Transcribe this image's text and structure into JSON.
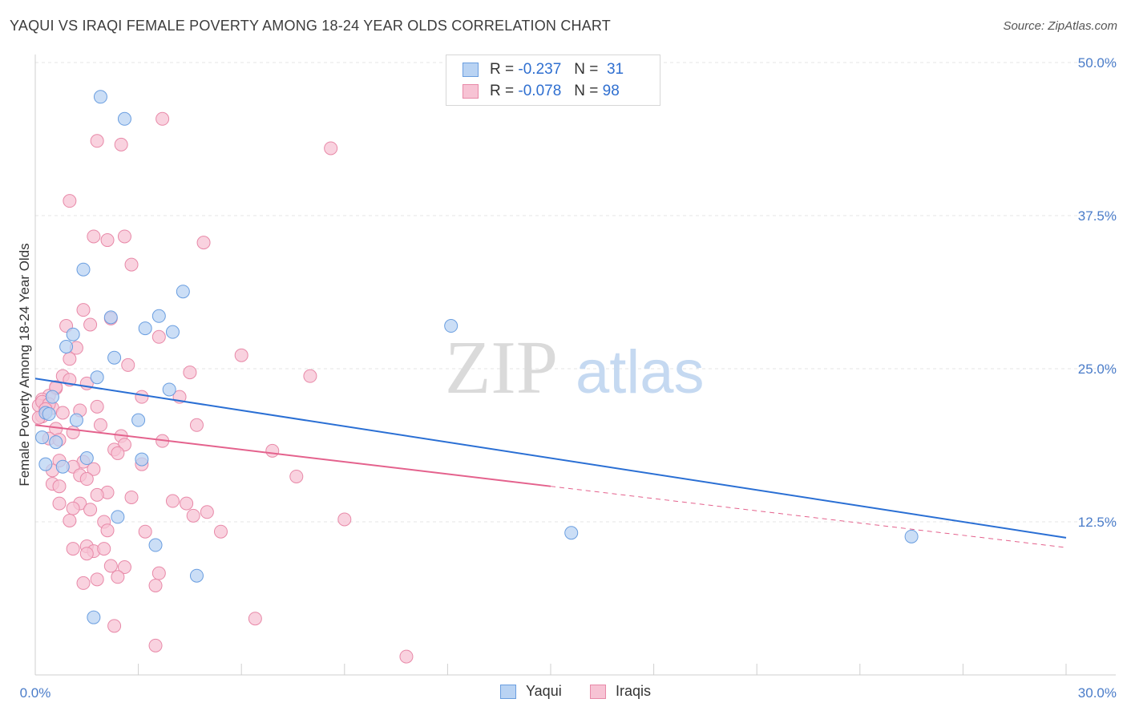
{
  "header": {
    "title": "YAQUI VS IRAQI FEMALE POVERTY AMONG 18-24 YEAR OLDS CORRELATION CHART",
    "source": "Source: ZipAtlas.com"
  },
  "legend": {
    "yaqui": {
      "r_label": "R =",
      "r_value": "-0.237",
      "n_label": "N =",
      "n_value": "31"
    },
    "iraqis": {
      "r_label": "R =",
      "r_value": "-0.078",
      "n_label": "N =",
      "n_value": "98"
    }
  },
  "bottom_legend": {
    "yaqui": "Yaqui",
    "iraqis": "Iraqis"
  },
  "watermark": {
    "zip": "ZIP",
    "atlas": "atlas"
  },
  "colors": {
    "yaqui_fill": "#b9d3f3",
    "yaqui_stroke": "#6a9ee0",
    "yaqui_line": "#2a6fd4",
    "iraqi_fill": "#f7c3d4",
    "iraqi_stroke": "#e889a8",
    "iraqi_line": "#e4628d",
    "tick_text": "#4a7cc9",
    "grid": "#e6e6e6"
  },
  "chart_data": {
    "type": "scatter",
    "title": "YAQUI VS IRAQI FEMALE POVERTY AMONG 18-24 YEAR OLDS CORRELATION CHART",
    "xlabel": "",
    "ylabel": "Female Poverty Among 18-24 Year Olds",
    "xlim": [
      0,
      30
    ],
    "ylim": [
      0,
      50
    ],
    "x_tick_labels": [
      {
        "value": 0,
        "label": "0.0%"
      },
      {
        "value": 30,
        "label": "30.0%"
      }
    ],
    "y_tick_labels": [
      {
        "value": 12.5,
        "label": "12.5%"
      },
      {
        "value": 25,
        "label": "25.0%"
      },
      {
        "value": 37.5,
        "label": "37.5%"
      },
      {
        "value": 50,
        "label": "50.0%"
      }
    ],
    "series": [
      {
        "name": "Yaqui",
        "points": [
          [
            1.9,
            47.2
          ],
          [
            2.6,
            45.4
          ],
          [
            1.4,
            33.1
          ],
          [
            4.3,
            31.3
          ],
          [
            12.1,
            28.5
          ],
          [
            2.2,
            29.2
          ],
          [
            3.6,
            29.3
          ],
          [
            3.2,
            28.3
          ],
          [
            4.0,
            28.0
          ],
          [
            1.1,
            27.8
          ],
          [
            0.9,
            26.8
          ],
          [
            2.3,
            25.9
          ],
          [
            1.8,
            24.3
          ],
          [
            3.9,
            23.3
          ],
          [
            0.5,
            22.7
          ],
          [
            0.3,
            21.4
          ],
          [
            1.2,
            20.8
          ],
          [
            3.0,
            20.8
          ],
          [
            0.2,
            19.4
          ],
          [
            0.6,
            19.0
          ],
          [
            1.5,
            17.7
          ],
          [
            3.1,
            17.6
          ],
          [
            0.3,
            17.2
          ],
          [
            0.8,
            17.0
          ],
          [
            2.4,
            12.9
          ],
          [
            3.5,
            10.6
          ],
          [
            15.6,
            11.6
          ],
          [
            25.5,
            11.3
          ],
          [
            4.7,
            8.1
          ],
          [
            1.7,
            4.7
          ],
          [
            0.4,
            21.3
          ]
        ],
        "trend": {
          "x": [
            0,
            30
          ],
          "y": [
            24.2,
            11.2
          ]
        }
      },
      {
        "name": "Iraqis",
        "points": [
          [
            3.7,
            45.4
          ],
          [
            1.8,
            43.6
          ],
          [
            2.5,
            43.3
          ],
          [
            8.6,
            43.0
          ],
          [
            1.0,
            38.7
          ],
          [
            1.7,
            35.8
          ],
          [
            2.6,
            35.8
          ],
          [
            2.1,
            35.5
          ],
          [
            4.9,
            35.3
          ],
          [
            2.8,
            33.5
          ],
          [
            1.4,
            29.8
          ],
          [
            2.2,
            29.1
          ],
          [
            1.6,
            28.6
          ],
          [
            0.9,
            28.5
          ],
          [
            3.6,
            27.6
          ],
          [
            1.2,
            26.7
          ],
          [
            6.0,
            26.1
          ],
          [
            1.0,
            25.8
          ],
          [
            2.7,
            25.3
          ],
          [
            4.5,
            24.7
          ],
          [
            8.0,
            24.4
          ],
          [
            0.8,
            24.4
          ],
          [
            1.5,
            23.8
          ],
          [
            0.6,
            23.4
          ],
          [
            0.4,
            22.8
          ],
          [
            0.2,
            22.5
          ],
          [
            3.1,
            22.7
          ],
          [
            4.2,
            22.7
          ],
          [
            0.3,
            22.0
          ],
          [
            0.1,
            22.0
          ],
          [
            0.5,
            21.8
          ],
          [
            1.8,
            21.9
          ],
          [
            0.3,
            21.5
          ],
          [
            0.8,
            21.4
          ],
          [
            1.3,
            21.6
          ],
          [
            0.2,
            21.1
          ],
          [
            0.1,
            21.0
          ],
          [
            1.9,
            20.4
          ],
          [
            4.7,
            20.4
          ],
          [
            1.1,
            19.8
          ],
          [
            0.6,
            20.1
          ],
          [
            2.5,
            19.5
          ],
          [
            0.4,
            19.3
          ],
          [
            0.7,
            19.2
          ],
          [
            3.7,
            19.1
          ],
          [
            2.6,
            18.8
          ],
          [
            2.3,
            18.4
          ],
          [
            6.9,
            18.3
          ],
          [
            2.4,
            18.1
          ],
          [
            1.4,
            17.4
          ],
          [
            0.7,
            17.5
          ],
          [
            3.1,
            17.2
          ],
          [
            1.1,
            17.0
          ],
          [
            0.5,
            16.7
          ],
          [
            1.7,
            16.8
          ],
          [
            7.6,
            16.2
          ],
          [
            1.3,
            16.3
          ],
          [
            1.5,
            16.0
          ],
          [
            0.5,
            15.6
          ],
          [
            0.7,
            15.4
          ],
          [
            2.1,
            14.9
          ],
          [
            2.8,
            14.5
          ],
          [
            1.8,
            14.7
          ],
          [
            4.0,
            14.2
          ],
          [
            1.3,
            14.0
          ],
          [
            0.7,
            14.0
          ],
          [
            4.4,
            14.0
          ],
          [
            1.1,
            13.6
          ],
          [
            1.6,
            13.5
          ],
          [
            5.0,
            13.3
          ],
          [
            4.6,
            13.0
          ],
          [
            9.0,
            12.7
          ],
          [
            1.0,
            12.6
          ],
          [
            2.0,
            12.5
          ],
          [
            2.1,
            11.8
          ],
          [
            3.2,
            11.7
          ],
          [
            5.4,
            11.7
          ],
          [
            1.5,
            10.5
          ],
          [
            1.7,
            10.1
          ],
          [
            2.0,
            10.3
          ],
          [
            1.1,
            10.3
          ],
          [
            1.5,
            9.9
          ],
          [
            2.2,
            8.9
          ],
          [
            2.6,
            8.8
          ],
          [
            2.4,
            8.0
          ],
          [
            3.6,
            8.3
          ],
          [
            1.8,
            7.8
          ],
          [
            1.4,
            7.5
          ],
          [
            3.5,
            7.3
          ],
          [
            6.4,
            4.6
          ],
          [
            2.3,
            4.0
          ],
          [
            3.5,
            2.4
          ],
          [
            10.8,
            1.5
          ],
          [
            0.2,
            22.3
          ],
          [
            0.4,
            22.1
          ],
          [
            0.3,
            21.7
          ],
          [
            0.6,
            23.5
          ],
          [
            1.0,
            24.1
          ]
        ],
        "trend": {
          "x": [
            0,
            15
          ],
          "y": [
            20.4,
            15.4
          ]
        },
        "trend_dashed": {
          "x": [
            15,
            30
          ],
          "y": [
            15.4,
            10.4
          ]
        }
      }
    ]
  }
}
